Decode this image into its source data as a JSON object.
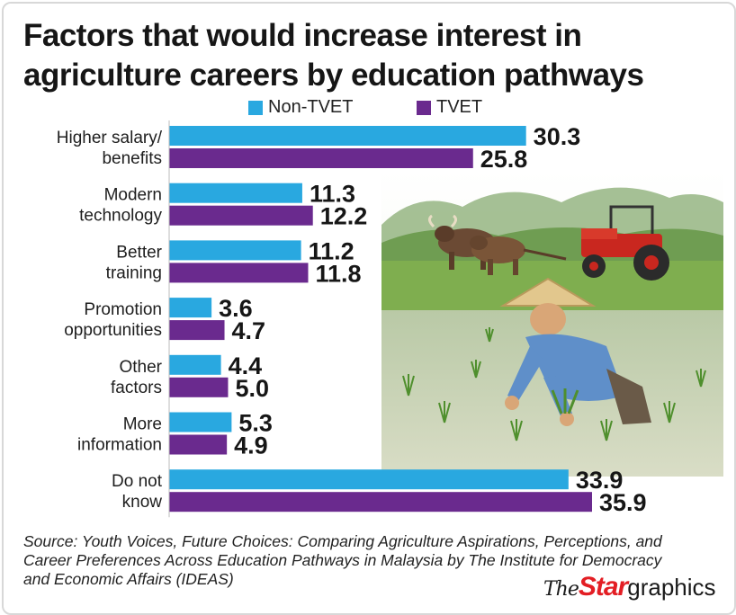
{
  "chart_data": {
    "type": "bar",
    "orientation": "horizontal",
    "title": "Factors that would increase interest in agriculture careers by education pathways",
    "categories": [
      [
        "Higher salary/",
        "benefits"
      ],
      [
        "Modern",
        "technology"
      ],
      [
        "Better",
        "training"
      ],
      [
        "Promotion",
        "opportunities"
      ],
      [
        "Other",
        "factors"
      ],
      [
        "More",
        "information"
      ],
      [
        "Do not",
        "know"
      ]
    ],
    "series": [
      {
        "name": "Non-TVET",
        "color": "#29a8e0",
        "values": [
          30.3,
          11.3,
          11.2,
          3.6,
          4.4,
          5.3,
          33.9
        ]
      },
      {
        "name": "TVET",
        "color": "#6a2a8e",
        "values": [
          25.8,
          12.2,
          11.8,
          4.7,
          5.0,
          4.9,
          35.9
        ]
      }
    ],
    "value_labels": [
      [
        "30.3",
        "11.3",
        "11.2",
        "3.6",
        "4.4",
        "5.3",
        "33.9"
      ],
      [
        "25.8",
        "12.2",
        "11.8",
        "4.7",
        "5.0",
        "4.9",
        "35.9"
      ]
    ],
    "xlim": [
      0,
      35.9
    ],
    "legend_position": "top",
    "grid": false
  },
  "source": "Source: Youth Voices, Future Choices: Comparing Agriculture Aspirations, Perceptions, and Career Preferences Across Education Pathways in Malaysia by The Institute for Democracy and Economic Affairs (IDEAS)",
  "logo": {
    "the": "The",
    "star": "Star",
    "graphics": "graphics"
  },
  "colors": {
    "title": "#161616",
    "star_red": "#e31e24"
  }
}
